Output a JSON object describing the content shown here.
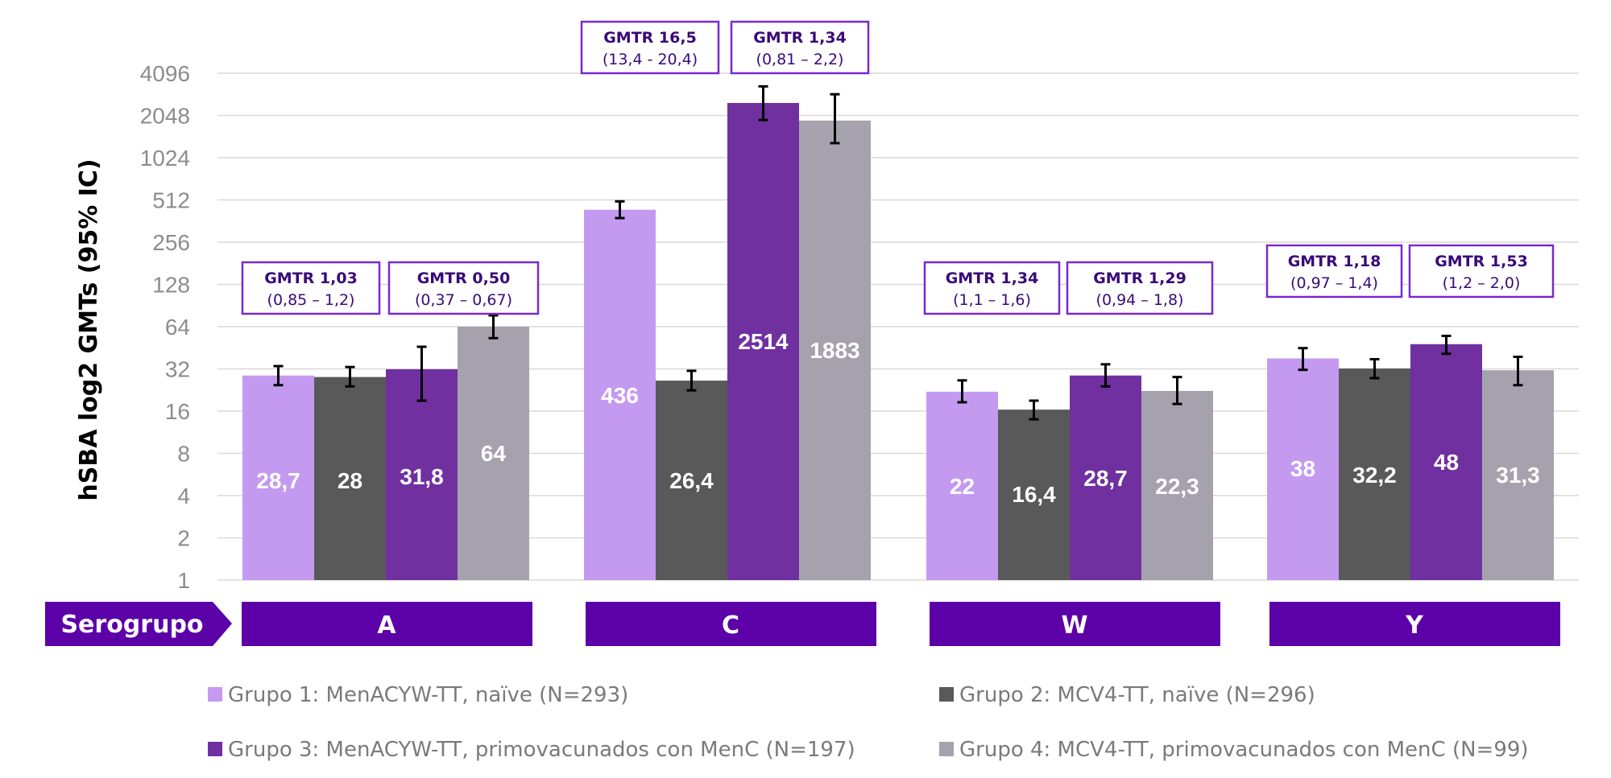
{
  "chart_data": {
    "type": "bar",
    "y_scale": "log2",
    "ylabel": "hSBA log2 GMTs (95% IC)",
    "y_ticks": [
      "1",
      "2",
      "4",
      "8",
      "16",
      "32",
      "64",
      "128",
      "256",
      "512",
      "1024",
      "2048",
      "4096"
    ],
    "ylim": [
      1,
      4096
    ],
    "grid": true,
    "category_title": "Serogrupo",
    "categories": [
      "A",
      "C",
      "W",
      "Y"
    ],
    "series": [
      {
        "name": "Grupo 1: MenACYW-TT, naïve (N=293)",
        "color": "#c49af0",
        "values": [
          28.7,
          436,
          22,
          38
        ],
        "labels": [
          "28,7",
          "436",
          "22",
          "38"
        ],
        "err_low": [
          24.5,
          380,
          18.5,
          31.5
        ],
        "err_high": [
          33.5,
          500,
          26.5,
          45
        ]
      },
      {
        "name": "Grupo 2: MCV4-TT, naïve (N=296)",
        "color": "#595959",
        "values": [
          28,
          26.4,
          16.4,
          32.2
        ],
        "labels": [
          "28",
          "26,4",
          "16,4",
          "32,2"
        ],
        "err_low": [
          24,
          22.5,
          14,
          27.5
        ],
        "err_high": [
          33,
          31,
          19,
          37.5
        ]
      },
      {
        "name": "Grupo 3: MenACYW-TT, primovacunados con MenC (N=197)",
        "color": "#7030a0",
        "values": [
          31.8,
          2514,
          28.7,
          48
        ],
        "labels": [
          "31,8",
          "2514",
          "28,7",
          "48"
        ],
        "err_low": [
          19,
          1900,
          24,
          41
        ],
        "err_high": [
          46,
          3300,
          34.5,
          55
        ]
      },
      {
        "name": "Grupo 4: MCV4-TT, primovacunados con MenC (N=99)",
        "color": "#a5a2ae",
        "values": [
          64,
          1883,
          22.3,
          31.3
        ],
        "labels": [
          "64",
          "1883",
          "22,3",
          "31,3"
        ],
        "err_low": [
          53,
          1300,
          18,
          24.5
        ],
        "err_high": [
          77,
          2900,
          28,
          39
        ]
      }
    ],
    "annotations": [
      {
        "category": 0,
        "pair": 0,
        "title": "GMTR 1,03",
        "ci": "(0,85 – 1,2)"
      },
      {
        "category": 0,
        "pair": 1,
        "title": "GMTR 0,50",
        "ci": "(0,37 – 0,67)"
      },
      {
        "category": 1,
        "pair": 0,
        "title": "GMTR 16,5",
        "ci": "(13,4 - 20,4)"
      },
      {
        "category": 1,
        "pair": 1,
        "title": "GMTR 1,34",
        "ci": "(0,81 – 2,2)"
      },
      {
        "category": 2,
        "pair": 0,
        "title": "GMTR 1,34",
        "ci": "(1,1 – 1,6)"
      },
      {
        "category": 2,
        "pair": 1,
        "title": "GMTR 1,29",
        "ci": "(0,94 – 1,8)"
      },
      {
        "category": 3,
        "pair": 0,
        "title": "GMTR 1,18",
        "ci": "(0,97 – 1,4)"
      },
      {
        "category": 3,
        "pair": 1,
        "title": "GMTR 1,53",
        "ci": "(1,2 – 2,0)"
      }
    ],
    "legend_placement": "bottom"
  },
  "colors": {
    "category_band": "#5c00a8",
    "annotation_border": "#7a28d0",
    "gridline": "#d9d9d9",
    "error_bar": "#000000"
  }
}
